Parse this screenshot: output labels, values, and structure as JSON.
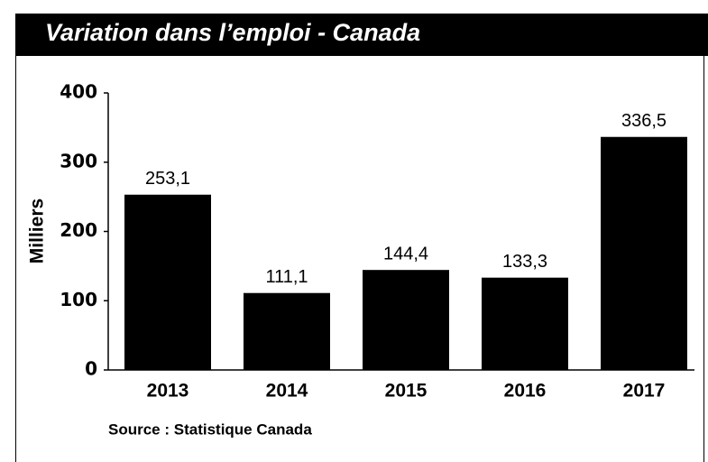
{
  "chart_data": {
    "type": "bar",
    "title": "Variation dans l’emploi - Canada",
    "y_label": "Milliers",
    "source": "Source : Statistique Canada",
    "categories": [
      "2013",
      "2014",
      "2015",
      "2016",
      "2017"
    ],
    "values": [
      253.1,
      111.1,
      144.4,
      133.3,
      336.5
    ],
    "value_labels": [
      "253,1",
      "111,1",
      "144,4",
      "133,3",
      "336,5"
    ],
    "color": "#000000",
    "ylim": [
      0,
      400
    ],
    "yticks": [
      0,
      100,
      200,
      300,
      400
    ],
    "grid": false
  }
}
